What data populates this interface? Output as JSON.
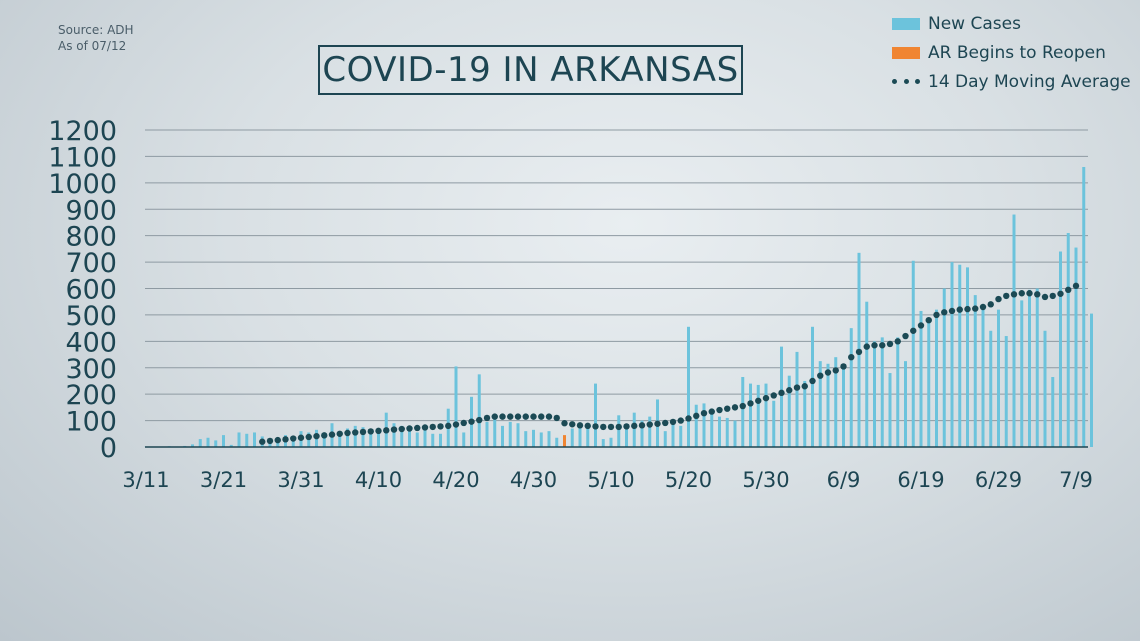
{
  "source": {
    "line1": "Source: ADH",
    "line2": "As of 07/12"
  },
  "title": "COVID-19 IN ARKANSAS",
  "legend": [
    {
      "label": "New Cases",
      "color": "#6cc3dc",
      "kind": "bar"
    },
    {
      "label": "AR Begins to Reopen",
      "color": "#f08532",
      "kind": "bar"
    },
    {
      "label": "14 Day Moving Average",
      "color": "#1b4a55",
      "kind": "dots"
    }
  ],
  "chart_data": {
    "type": "bar",
    "x_start": "3/11",
    "ylim": [
      0,
      1200
    ],
    "yticks": [
      0,
      100,
      200,
      300,
      400,
      500,
      600,
      700,
      800,
      900,
      1000,
      1100,
      1200
    ],
    "xtick_labels": [
      "3/11",
      "3/21",
      "3/31",
      "4/10",
      "4/20",
      "4/30",
      "5/10",
      "5/20",
      "5/30",
      "6/9",
      "6/19",
      "6/29",
      "7/9"
    ],
    "xtick_day_index": [
      0,
      10,
      20,
      30,
      40,
      50,
      60,
      70,
      80,
      90,
      100,
      110,
      120
    ],
    "grid": true,
    "legend_position": "top-right",
    "colors": {
      "bar": "#6cc3dc",
      "highlight": "#f08532",
      "avg": "#1b4a55",
      "grid": "#8e9aa2",
      "axis": "#1d4552"
    },
    "highlight_date": "5/4",
    "series": [
      {
        "name": "New Cases",
        "values": [
          1,
          1,
          1,
          3,
          2,
          4,
          10,
          30,
          35,
          25,
          45,
          8,
          55,
          50,
          55,
          40,
          30,
          20,
          45,
          35,
          60,
          55,
          65,
          45,
          90,
          60,
          70,
          80,
          75,
          60,
          55,
          130,
          90,
          80,
          60,
          55,
          70,
          50,
          50,
          145,
          305,
          55,
          190,
          275,
          95,
          110,
          80,
          95,
          90,
          60,
          65,
          55,
          60,
          35,
          45,
          70,
          75,
          80,
          240,
          30,
          35,
          120,
          80,
          130,
          100,
          115,
          180,
          60,
          100,
          80,
          455,
          160,
          165,
          145,
          115,
          110,
          100,
          265,
          240,
          235,
          240,
          175,
          380,
          270,
          360,
          250,
          455,
          325,
          315,
          340,
          305,
          450,
          735,
          550,
          400,
          415,
          280,
          415,
          325,
          705,
          515,
          485,
          520,
          600,
          700,
          690,
          680,
          575,
          535,
          440,
          520,
          420,
          880,
          555,
          595,
          600,
          440,
          265,
          740,
          810,
          755,
          1060,
          505
        ]
      },
      {
        "name": "14 Day Moving Average",
        "start_index": 15,
        "values": [
          20,
          23,
          26,
          29,
          32,
          35,
          38,
          41,
          44,
          47,
          50,
          53,
          55,
          57,
          59,
          61,
          63,
          66,
          68,
          70,
          72,
          74,
          76,
          78,
          80,
          85,
          91,
          96,
          102,
          110,
          115,
          115,
          115,
          115,
          115,
          115,
          115,
          115,
          110,
          90,
          86,
          82,
          80,
          78,
          76,
          76,
          76,
          78,
          80,
          82,
          85,
          88,
          91,
          95,
          100,
          108,
          118,
          128,
          134,
          140,
          145,
          150,
          155,
          165,
          175,
          185,
          195,
          205,
          215,
          225,
          230,
          250,
          270,
          282,
          290,
          305,
          340,
          360,
          380,
          385,
          385,
          390,
          400,
          420,
          440,
          460,
          480,
          500,
          510,
          515,
          520,
          522,
          524,
          530,
          540,
          560,
          572,
          578,
          582,
          582,
          578,
          568,
          572,
          580,
          595,
          610
        ]
      }
    ]
  }
}
